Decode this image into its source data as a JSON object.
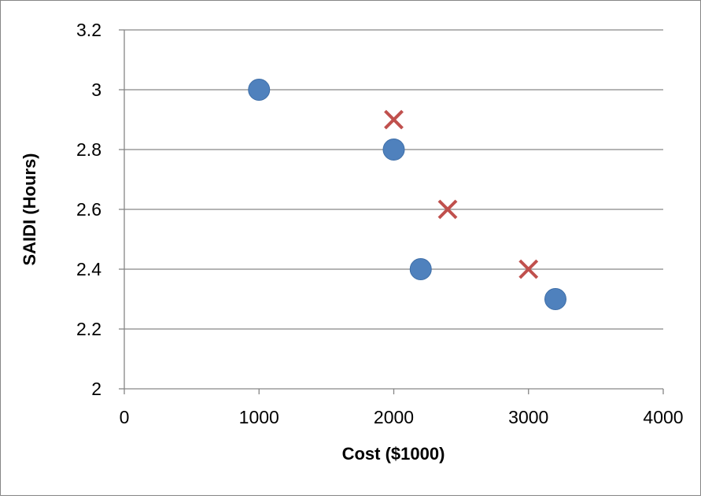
{
  "chart_data": {
    "type": "scatter",
    "title": "",
    "xlabel": "Cost ($1000)",
    "ylabel": "SAIDI (Hours)",
    "xlim": [
      0,
      4000
    ],
    "ylim": [
      2,
      3.2
    ],
    "xticks": [
      0,
      1000,
      2000,
      3000,
      4000
    ],
    "yticks": [
      2,
      2.2,
      2.4,
      2.6,
      2.8,
      3,
      3.2
    ],
    "xtick_labels": [
      "0",
      "1000",
      "2000",
      "3000",
      "4000"
    ],
    "ytick_labels": [
      "2",
      "2.2",
      "2.4",
      "2.6",
      "2.8",
      "3",
      "3.2"
    ],
    "grid": {
      "horizontal": true,
      "vertical": false
    },
    "legend": "none",
    "series": [
      {
        "marker": "circle",
        "color": "#4F81BD",
        "points": [
          {
            "x": 1000,
            "y": 3.0
          },
          {
            "x": 2000,
            "y": 2.8
          },
          {
            "x": 2200,
            "y": 2.4
          },
          {
            "x": 3200,
            "y": 2.3
          }
        ]
      },
      {
        "marker": "x",
        "color": "#C0504D",
        "points": [
          {
            "x": 2000,
            "y": 2.9
          },
          {
            "x": 2400,
            "y": 2.6
          },
          {
            "x": 3000,
            "y": 2.4
          }
        ]
      }
    ],
    "gridline_color": "#868686",
    "axis_color": "#868686"
  }
}
